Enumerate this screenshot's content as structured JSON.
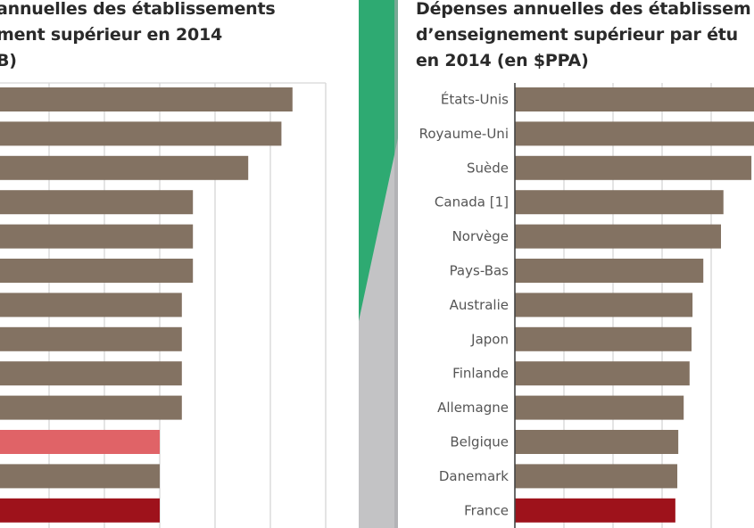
{
  "left_panel": {
    "title_lines": [
      "annuelles des établissements",
      "ment supérieur en 2014",
      "B)"
    ]
  },
  "right_panel": {
    "title_lines": [
      "Dépenses annuelles des établissem",
      "d’enseignement supérieur par étu",
      "en 2014 (en $PPA)"
    ]
  },
  "colors": {
    "default_bar": "#837262",
    "highlight_bar": "#9e121b",
    "light_highlight_bar": "#e06367",
    "grid": "#d6d6d6",
    "divider_green": "#2eaa72",
    "divider_gray": "#c3c3c5"
  },
  "chart_data": [
    {
      "type": "bar",
      "orientation": "horizontal",
      "title": "… annuelles des établissements … ment supérieur en 2014 … B)",
      "note": "Cropped chart: category labels and tick labels not visible; values in gridline-step units measured from the first visible gridline",
      "categories": [
        "",
        "",
        "",
        "",
        "",
        "",
        "",
        "",
        "",
        "",
        "",
        "",
        ""
      ],
      "values": [
        4.4,
        4.2,
        3.6,
        2.6,
        2.6,
        2.6,
        2.4,
        2.4,
        2.4,
        2.4,
        2.0,
        2.0,
        2.0
      ],
      "bar_colors": [
        "default",
        "default",
        "default",
        "default",
        "default",
        "default",
        "default",
        "default",
        "default",
        "default",
        "light_highlight",
        "default",
        "highlight"
      ],
      "xlim": [
        -0.9,
        5.0
      ],
      "grid": true,
      "xlabel": "",
      "ylabel": ""
    },
    {
      "type": "bar",
      "orientation": "horizontal",
      "title": "Dépenses annuelles des établissem… d’enseignement supérieur par étu… en 2014 (en $PPA)",
      "note": "Cropped chart: tick labels not visible; values in gridline-step units from axis origin; first two bars extend beyond the crop",
      "categories": [
        "États-Unis",
        "Royaume-Uni",
        "Suède",
        "Canada [1]",
        "Norvège",
        "Pays-Bas",
        "Australie",
        "Japon",
        "Finlande",
        "Allemagne",
        "Belgique",
        "Danemark",
        "France"
      ],
      "values": [
        5.0,
        5.0,
        4.82,
        4.25,
        4.2,
        3.84,
        3.62,
        3.6,
        3.56,
        3.44,
        3.33,
        3.31,
        3.27
      ],
      "bar_colors": [
        "default",
        "default",
        "default",
        "default",
        "default",
        "default",
        "default",
        "default",
        "default",
        "default",
        "default",
        "default",
        "highlight"
      ],
      "xlim": [
        0,
        4.87
      ],
      "grid": true,
      "xlabel": "",
      "ylabel": ""
    }
  ]
}
